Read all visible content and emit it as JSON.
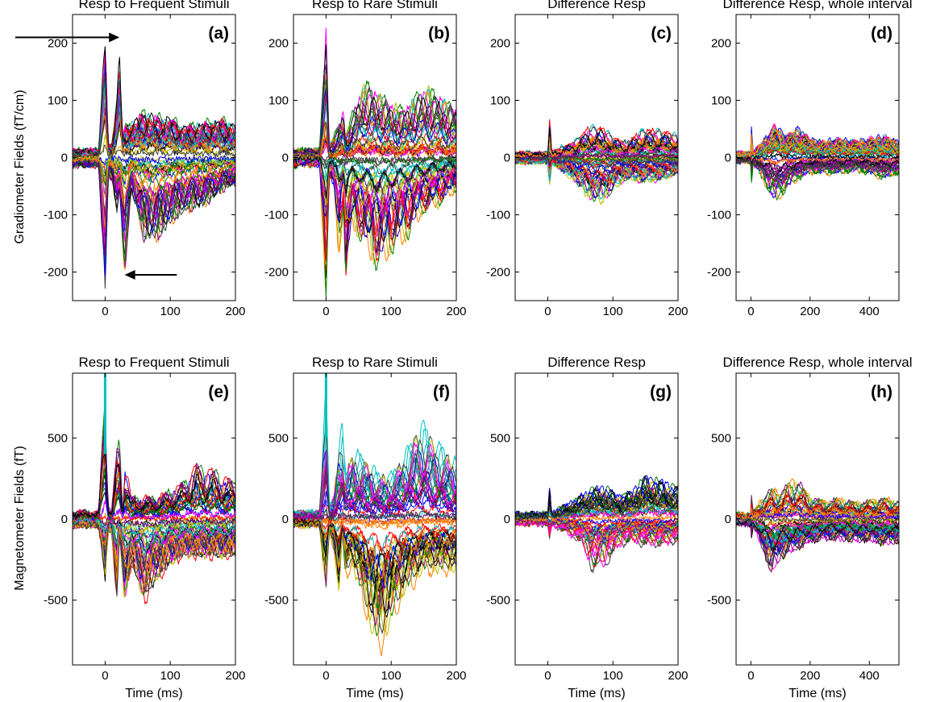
{
  "chart_data": [
    {
      "panel": "a",
      "type": "line",
      "title": "Resp to Frequent Stimuli",
      "xlabel": "",
      "ylabel": "Gradiometer Fields (fT/cm)",
      "xlim": [
        -50,
        200
      ],
      "ylim": [
        -250,
        250
      ],
      "xticks": [
        0,
        100,
        200
      ],
      "yticks": [
        200,
        100,
        0,
        -100,
        -200
      ],
      "n_traces": 60,
      "envelope": {
        "x": [
          -50,
          -10,
          0,
          5,
          10,
          18,
          22,
          27,
          30,
          40,
          60,
          80,
          100,
          120,
          150,
          180,
          200
        ],
        "upper": [
          15,
          15,
          250,
          20,
          25,
          120,
          210,
          40,
          60,
          70,
          90,
          80,
          80,
          60,
          70,
          75,
          65
        ],
        "lower": [
          -15,
          -15,
          -250,
          -30,
          -40,
          -100,
          -60,
          -160,
          -215,
          -60,
          -150,
          -150,
          -120,
          -100,
          -90,
          -60,
          -50
        ]
      },
      "annotations": [
        {
          "type": "arrow",
          "target": [
            22,
            210
          ],
          "from": [
            -138,
            210
          ],
          "label": ""
        },
        {
          "type": "arrow",
          "target": [
            30,
            -205
          ],
          "from": [
            110,
            -205
          ],
          "label": ""
        }
      ]
    },
    {
      "panel": "b",
      "type": "line",
      "title": "Resp to Rare Stimuli",
      "xlabel": "",
      "ylabel": "",
      "xlim": [
        -50,
        200
      ],
      "ylim": [
        -250,
        250
      ],
      "xticks": [
        0,
        100,
        200
      ],
      "yticks": [
        200,
        100,
        0,
        -100,
        -200
      ],
      "n_traces": 60,
      "envelope": {
        "x": [
          -50,
          -10,
          0,
          5,
          12,
          20,
          27,
          30,
          40,
          60,
          80,
          100,
          120,
          150,
          180,
          200
        ],
        "upper": [
          15,
          15,
          250,
          20,
          40,
          60,
          90,
          40,
          80,
          140,
          120,
          100,
          90,
          130,
          110,
          90
        ],
        "lower": [
          -15,
          -15,
          -250,
          -30,
          -60,
          -180,
          -80,
          -230,
          -120,
          -160,
          -200,
          -170,
          -150,
          -100,
          -80,
          -60
        ]
      },
      "annotations": []
    },
    {
      "panel": "c",
      "type": "line",
      "title": "Difference Resp",
      "xlabel": "",
      "ylabel": "",
      "xlim": [
        -50,
        200
      ],
      "ylim": [
        -250,
        250
      ],
      "xticks": [
        0,
        100,
        200
      ],
      "yticks": [
        200,
        100,
        0,
        -100,
        -200
      ],
      "n_traces": 60,
      "envelope": {
        "x": [
          -50,
          -10,
          0,
          3,
          6,
          10,
          20,
          40,
          60,
          80,
          100,
          120,
          150,
          180,
          200
        ],
        "upper": [
          10,
          10,
          10,
          85,
          10,
          12,
          20,
          30,
          55,
          60,
          40,
          30,
          55,
          50,
          40
        ],
        "lower": [
          -10,
          -10,
          -10,
          -60,
          -12,
          -15,
          -25,
          -40,
          -70,
          -85,
          -60,
          -40,
          -45,
          -40,
          -30
        ]
      },
      "annotations": []
    },
    {
      "panel": "d",
      "type": "line",
      "title": "Difference Resp, whole interval",
      "xlabel": "",
      "ylabel": "",
      "xlim": [
        -50,
        500
      ],
      "ylim": [
        -250,
        250
      ],
      "xticks": [
        0,
        200,
        400
      ],
      "yticks": [
        200,
        100,
        0,
        -100,
        -200
      ],
      "n_traces": 60,
      "envelope": {
        "x": [
          -50,
          -10,
          0,
          3,
          6,
          10,
          40,
          80,
          120,
          160,
          200,
          250,
          300,
          350,
          400,
          450,
          500
        ],
        "upper": [
          10,
          10,
          10,
          85,
          10,
          12,
          30,
          60,
          40,
          55,
          35,
          30,
          35,
          30,
          35,
          40,
          30
        ],
        "lower": [
          -10,
          -10,
          -10,
          -60,
          -12,
          -15,
          -40,
          -85,
          -60,
          -40,
          -30,
          -30,
          -30,
          -25,
          -30,
          -40,
          -30
        ]
      },
      "annotations": []
    },
    {
      "panel": "e",
      "type": "line",
      "title": "Resp to Frequent Stimuli",
      "xlabel": "Time (ms)",
      "ylabel": "Magnetometer Fields (fT)",
      "xlim": [
        -50,
        200
      ],
      "ylim": [
        -900,
        900
      ],
      "xticks": [
        0,
        100,
        200
      ],
      "yticks": [
        500,
        0,
        -500
      ],
      "n_traces": 60,
      "envelope": {
        "x": [
          -50,
          -10,
          0,
          5,
          10,
          18,
          22,
          27,
          30,
          40,
          60,
          80,
          100,
          120,
          140,
          160,
          180,
          200
        ],
        "upper": [
          50,
          50,
          900,
          80,
          60,
          480,
          540,
          80,
          400,
          150,
          150,
          150,
          200,
          250,
          380,
          350,
          300,
          250
        ],
        "lower": [
          -50,
          -50,
          -400,
          -80,
          -80,
          -540,
          -100,
          -400,
          -540,
          -300,
          -540,
          -400,
          -300,
          -250,
          -250,
          -250,
          -250,
          -250
        ]
      },
      "annotations": []
    },
    {
      "panel": "f",
      "type": "line",
      "title": "Resp to Rare Stimuli",
      "xlabel": "Time (ms)",
      "ylabel": "",
      "xlim": [
        -50,
        200
      ],
      "ylim": [
        -900,
        900
      ],
      "xticks": [
        0,
        100,
        200
      ],
      "yticks": [
        500,
        0,
        -500
      ],
      "n_traces": 60,
      "envelope": {
        "x": [
          -50,
          -10,
          0,
          5,
          12,
          20,
          25,
          30,
          40,
          60,
          80,
          100,
          120,
          140,
          150,
          170,
          200
        ],
        "upper": [
          50,
          50,
          900,
          80,
          150,
          520,
          600,
          300,
          450,
          400,
          300,
          300,
          420,
          600,
          640,
          500,
          380
        ],
        "lower": [
          -50,
          -50,
          -500,
          -80,
          -200,
          -500,
          -100,
          -400,
          -300,
          -600,
          -880,
          -700,
          -500,
          -400,
          -350,
          -350,
          -350
        ]
      },
      "annotations": []
    },
    {
      "panel": "g",
      "type": "line",
      "title": "Difference Resp",
      "xlabel": "Time (ms)",
      "ylabel": "",
      "xlim": [
        -50,
        200
      ],
      "ylim": [
        -900,
        900
      ],
      "xticks": [
        0,
        100,
        200
      ],
      "yticks": [
        500,
        0,
        -500
      ],
      "n_traces": 60,
      "envelope": {
        "x": [
          -50,
          -10,
          0,
          3,
          6,
          10,
          30,
          50,
          70,
          90,
          110,
          130,
          150,
          170,
          200
        ],
        "upper": [
          40,
          40,
          40,
          220,
          40,
          50,
          100,
          150,
          200,
          200,
          150,
          180,
          280,
          250,
          200
        ],
        "lower": [
          -40,
          -40,
          -40,
          -150,
          -40,
          -50,
          -100,
          -150,
          -350,
          -300,
          -180,
          -150,
          -180,
          -180,
          -150
        ]
      },
      "annotations": []
    },
    {
      "panel": "h",
      "type": "line",
      "title": "Difference Resp, whole interval",
      "xlabel": "Time (ms)",
      "ylabel": "",
      "xlim": [
        -50,
        500
      ],
      "ylim": [
        -900,
        900
      ],
      "xticks": [
        0,
        200,
        400
      ],
      "yticks": [
        500,
        0,
        -500
      ],
      "n_traces": 60,
      "envelope": {
        "x": [
          -50,
          -10,
          0,
          3,
          6,
          10,
          40,
          70,
          100,
          150,
          200,
          250,
          300,
          350,
          400,
          450,
          500
        ],
        "upper": [
          40,
          40,
          40,
          220,
          40,
          50,
          150,
          200,
          180,
          280,
          150,
          120,
          140,
          110,
          120,
          140,
          120
        ],
        "lower": [
          -40,
          -40,
          -40,
          -150,
          -40,
          -50,
          -200,
          -350,
          -250,
          -200,
          -150,
          -130,
          -130,
          -140,
          -140,
          -160,
          -150
        ]
      },
      "annotations": []
    }
  ],
  "colors": {
    "trace_palette": [
      "#0000ff",
      "#ff0000",
      "#008000",
      "#ff00ff",
      "#00bfbf",
      "#bfbf00",
      "#800080",
      "#ff8000",
      "#000000",
      "#404040"
    ],
    "stimulus_artifact": "#00c0c0",
    "frame": "#000000",
    "arrow": "#000000"
  }
}
